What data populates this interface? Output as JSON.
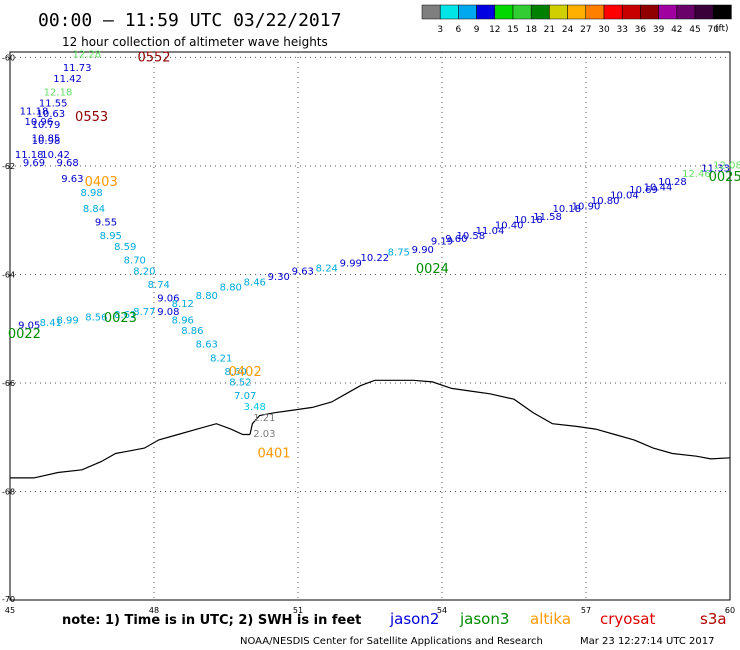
{
  "title": "00:00 – 11:59 UTC 03/22/2017",
  "subtitle": "12 hour collection of altimeter wave heights",
  "legend": {
    "unit": "(ft)",
    "colors": [
      "#7f7f7f",
      "#00e5e5",
      "#00a8f0",
      "#0000e0",
      "#00d800",
      "#32cd32",
      "#008000",
      "#d0d000",
      "#ffb000",
      "#ff7f00",
      "#ff0000",
      "#c80000",
      "#900000",
      "#a000a0",
      "#6a006a",
      "#3a003a",
      "#000000"
    ],
    "labels": [
      "3",
      "6",
      "9",
      "12",
      "15",
      "18",
      "21",
      "24",
      "27",
      "30",
      "33",
      "36",
      "39",
      "42",
      "45",
      "70"
    ]
  },
  "axes": {
    "lon_ticks": [
      "45",
      "48",
      "51",
      "54",
      "57",
      "60"
    ],
    "lat_ticks": [
      "-60",
      "-62",
      "-64",
      "-66",
      "-68",
      "-70"
    ]
  },
  "note": "note: 1) Time is in UTC; 2) SWH is in feet",
  "satellites": [
    {
      "name": "jason2",
      "color": "#0000dd"
    },
    {
      "name": "jason3",
      "color": "#008c00"
    },
    {
      "name": "altika",
      "color": "#ff9900"
    },
    {
      "name": "cryosat",
      "color": "#e00000"
    },
    {
      "name": "s3a",
      "color": "#b00000"
    }
  ],
  "footer": "NOAA/NESDIS Center for Satellite Applications and Research",
  "timestamp": "Mar 23 12:27:14 UTC 2017",
  "chart_data": {
    "type": "scatter",
    "xlim": [
      45,
      60
    ],
    "ylim": [
      -70,
      -59.9
    ],
    "pass_labels": [
      {
        "text": "0552",
        "lon": 48.0,
        "lat": -60.0,
        "color": "#8b0000"
      },
      {
        "text": "0553",
        "lon": 46.7,
        "lat": -61.1,
        "color": "#8b0000"
      },
      {
        "text": "0403",
        "lon": 46.9,
        "lat": -62.3,
        "color": "#ff9900"
      },
      {
        "text": "0402",
        "lon": 49.9,
        "lat": -65.8,
        "color": "#ff9900"
      },
      {
        "text": "0401",
        "lon": 50.5,
        "lat": -67.3,
        "color": "#ff9900"
      },
      {
        "text": "0022",
        "lon": 45.3,
        "lat": -65.1,
        "color": "#008c00"
      },
      {
        "text": "0023",
        "lon": 47.3,
        "lat": -64.8,
        "color": "#008c00"
      },
      {
        "text": "0024",
        "lon": 53.8,
        "lat": -63.9,
        "color": "#008c00"
      },
      {
        "text": "0025",
        "lon": 59.9,
        "lat": -62.2,
        "color": "#008c00"
      }
    ],
    "points": [
      {
        "lon": 46.6,
        "lat": -60.0,
        "v": "12.28",
        "c": "#66dd66"
      },
      {
        "lon": 46.4,
        "lat": -60.25,
        "v": "11.73",
        "c": "#0000cc"
      },
      {
        "lon": 46.2,
        "lat": -60.45,
        "v": "11.42",
        "c": "#0000cc"
      },
      {
        "lon": 46.0,
        "lat": -60.7,
        "v": "12.18",
        "c": "#66dd66"
      },
      {
        "lon": 45.9,
        "lat": -60.9,
        "v": "11.55",
        "c": "#0000cc"
      },
      {
        "lon": 45.5,
        "lat": -61.05,
        "v": "11.18",
        "c": "#0000cc"
      },
      {
        "lon": 45.85,
        "lat": -61.1,
        "v": "10.63",
        "c": "#0000cc"
      },
      {
        "lon": 45.6,
        "lat": -61.25,
        "v": "10.96",
        "c": "#0000cc"
      },
      {
        "lon": 45.75,
        "lat": -61.3,
        "v": "10.79",
        "c": "#0000cc"
      },
      {
        "lon": 45.75,
        "lat": -61.55,
        "v": "10.85",
        "c": "#0000cc"
      },
      {
        "lon": 45.75,
        "lat": -61.6,
        "v": "10.98",
        "c": "#0000cc"
      },
      {
        "lon": 45.4,
        "lat": -61.85,
        "v": "11.18",
        "c": "#0000cc"
      },
      {
        "lon": 45.95,
        "lat": -61.85,
        "v": "10.42",
        "c": "#0000cc"
      },
      {
        "lon": 45.5,
        "lat": -62.0,
        "v": "9.69",
        "c": "#0000cc"
      },
      {
        "lon": 46.2,
        "lat": -62.0,
        "v": "9.68",
        "c": "#0000cc"
      },
      {
        "lon": 46.3,
        "lat": -62.3,
        "v": "9.63",
        "c": "#0000cc"
      },
      {
        "lon": 46.7,
        "lat": -62.55,
        "v": "8.98",
        "c": "#00a8dd"
      },
      {
        "lon": 46.75,
        "lat": -62.85,
        "v": "8.84",
        "c": "#00a8dd"
      },
      {
        "lon": 47.0,
        "lat": -63.1,
        "v": "9.55",
        "c": "#0000cc"
      },
      {
        "lon": 47.1,
        "lat": -63.35,
        "v": "8.95",
        "c": "#00a8dd"
      },
      {
        "lon": 47.4,
        "lat": -63.55,
        "v": "8.59",
        "c": "#00a8dd"
      },
      {
        "lon": 47.6,
        "lat": -63.8,
        "v": "8.70",
        "c": "#00a8dd"
      },
      {
        "lon": 47.8,
        "lat": -64.0,
        "v": "8.20",
        "c": "#00a8dd"
      },
      {
        "lon": 48.1,
        "lat": -64.25,
        "v": "8.74",
        "c": "#00a8dd"
      },
      {
        "lon": 48.3,
        "lat": -64.5,
        "v": "9.06",
        "c": "#0000cc"
      },
      {
        "lon": 48.3,
        "lat": -64.75,
        "v": "9.08",
        "c": "#0000cc"
      },
      {
        "lon": 48.6,
        "lat": -64.9,
        "v": "8.96",
        "c": "#00a8dd"
      },
      {
        "lon": 48.8,
        "lat": -65.1,
        "v": "8.86",
        "c": "#00a8dd"
      },
      {
        "lon": 49.1,
        "lat": -65.35,
        "v": "8.63",
        "c": "#00a8dd"
      },
      {
        "lon": 49.4,
        "lat": -65.6,
        "v": "8.21",
        "c": "#00a8dd"
      },
      {
        "lon": 49.7,
        "lat": -65.85,
        "v": "8.60",
        "c": "#00a8dd"
      },
      {
        "lon": 49.8,
        "lat": -66.05,
        "v": "8.52",
        "c": "#00a8dd"
      },
      {
        "lon": 49.9,
        "lat": -66.3,
        "v": "7.07",
        "c": "#00a8dd"
      },
      {
        "lon": 50.1,
        "lat": -66.5,
        "v": "3.48",
        "c": "#00c8e5"
      },
      {
        "lon": 50.3,
        "lat": -66.7,
        "v": "1.21",
        "c": "#7f7f7f"
      },
      {
        "lon": 50.3,
        "lat": -67.0,
        "v": "2.03",
        "c": "#7f7f7f"
      },
      {
        "lon": 45.4,
        "lat": -65.0,
        "v": "9.05",
        "c": "#0000cc"
      },
      {
        "lon": 45.85,
        "lat": -64.95,
        "v": "8.41",
        "c": "#00a8dd"
      },
      {
        "lon": 46.2,
        "lat": -64.9,
        "v": "8.99",
        "c": "#00a8dd"
      },
      {
        "lon": 46.8,
        "lat": -64.85,
        "v": "8.56",
        "c": "#00a8dd"
      },
      {
        "lon": 47.4,
        "lat": -64.8,
        "v": "8.61",
        "c": "#00a8dd"
      },
      {
        "lon": 47.8,
        "lat": -64.75,
        "v": "8.77",
        "c": "#00a8dd"
      },
      {
        "lon": 48.6,
        "lat": -64.6,
        "v": "8.12",
        "c": "#00a8dd"
      },
      {
        "lon": 49.1,
        "lat": -64.45,
        "v": "8.80",
        "c": "#00a8dd"
      },
      {
        "lon": 49.6,
        "lat": -64.3,
        "v": "8.80",
        "c": "#00a8dd"
      },
      {
        "lon": 50.1,
        "lat": -64.2,
        "v": "8.46",
        "c": "#00a8dd"
      },
      {
        "lon": 50.6,
        "lat": -64.1,
        "v": "9.30",
        "c": "#0000cc"
      },
      {
        "lon": 51.1,
        "lat": -64.0,
        "v": "9.63",
        "c": "#0000cc"
      },
      {
        "lon": 51.6,
        "lat": -63.95,
        "v": "8.24",
        "c": "#00a8dd"
      },
      {
        "lon": 52.1,
        "lat": -63.85,
        "v": "9.99",
        "c": "#0000cc"
      },
      {
        "lon": 52.6,
        "lat": -63.75,
        "v": "10.22",
        "c": "#0000cc"
      },
      {
        "lon": 53.1,
        "lat": -63.65,
        "v": "8.75",
        "c": "#00a8dd"
      },
      {
        "lon": 53.6,
        "lat": -63.6,
        "v": "9.90",
        "c": "#0000cc"
      },
      {
        "lon": 54.0,
        "lat": -63.45,
        "v": "9.19",
        "c": "#0000cc"
      },
      {
        "lon": 54.3,
        "lat": -63.4,
        "v": "9.60",
        "c": "#0000cc"
      },
      {
        "lon": 54.6,
        "lat": -63.35,
        "v": "10.58",
        "c": "#0000cc"
      },
      {
        "lon": 55.0,
        "lat": -63.25,
        "v": "11.04",
        "c": "#0000cc"
      },
      {
        "lon": 55.4,
        "lat": -63.15,
        "v": "10.40",
        "c": "#0000cc"
      },
      {
        "lon": 55.8,
        "lat": -63.05,
        "v": "10.18",
        "c": "#0000cc"
      },
      {
        "lon": 56.2,
        "lat": -63.0,
        "v": "11.58",
        "c": "#0000cc"
      },
      {
        "lon": 56.6,
        "lat": -62.85,
        "v": "10.18",
        "c": "#0000cc"
      },
      {
        "lon": 57.0,
        "lat": -62.8,
        "v": "10.90",
        "c": "#0000cc"
      },
      {
        "lon": 57.4,
        "lat": -62.7,
        "v": "10.80",
        "c": "#0000cc"
      },
      {
        "lon": 57.8,
        "lat": -62.6,
        "v": "10.04",
        "c": "#0000cc"
      },
      {
        "lon": 58.2,
        "lat": -62.5,
        "v": "10.69",
        "c": "#0000cc"
      },
      {
        "lon": 58.5,
        "lat": -62.45,
        "v": "10.44",
        "c": "#0000cc"
      },
      {
        "lon": 58.8,
        "lat": -62.35,
        "v": "10.28",
        "c": "#0000cc"
      },
      {
        "lon": 59.3,
        "lat": -62.2,
        "v": "12.46",
        "c": "#66dd66"
      },
      {
        "lon": 59.7,
        "lat": -62.1,
        "v": "11.33",
        "c": "#0000cc"
      },
      {
        "lon": 59.95,
        "lat": -62.05,
        "v": "12.08",
        "c": "#66dd66"
      }
    ],
    "coastline": [
      [
        50.0,
        -66.95
      ],
      [
        50.05,
        -66.75
      ],
      [
        50.2,
        -66.6
      ],
      [
        50.5,
        -66.55
      ],
      [
        50.9,
        -66.5
      ],
      [
        51.3,
        -66.45
      ],
      [
        51.7,
        -66.35
      ],
      [
        52.0,
        -66.2
      ],
      [
        52.3,
        -66.05
      ],
      [
        52.6,
        -65.95
      ],
      [
        53.0,
        -65.95
      ],
      [
        53.4,
        -65.95
      ],
      [
        53.8,
        -65.98
      ],
      [
        54.2,
        -66.1
      ],
      [
        54.6,
        -66.15
      ],
      [
        55.0,
        -66.2
      ],
      [
        55.5,
        -66.3
      ],
      [
        55.9,
        -66.55
      ],
      [
        56.3,
        -66.75
      ],
      [
        56.8,
        -66.8
      ],
      [
        57.2,
        -66.85
      ],
      [
        57.6,
        -66.95
      ],
      [
        58.0,
        -67.05
      ],
      [
        58.4,
        -67.2
      ],
      [
        58.8,
        -67.3
      ],
      [
        59.3,
        -67.35
      ],
      [
        59.6,
        -67.4
      ],
      [
        60.0,
        -67.38
      ]
    ],
    "coastline_west": [
      [
        45.0,
        -67.75
      ],
      [
        45.5,
        -67.75
      ],
      [
        46.0,
        -67.65
      ],
      [
        46.5,
        -67.6
      ],
      [
        46.9,
        -67.45
      ],
      [
        47.2,
        -67.3
      ],
      [
        47.5,
        -67.25
      ],
      [
        47.8,
        -67.2
      ],
      [
        48.1,
        -67.05
      ],
      [
        48.5,
        -66.95
      ],
      [
        48.9,
        -66.85
      ],
      [
        49.3,
        -66.75
      ],
      [
        49.6,
        -66.85
      ],
      [
        49.85,
        -66.95
      ],
      [
        50.0,
        -66.95
      ]
    ]
  }
}
